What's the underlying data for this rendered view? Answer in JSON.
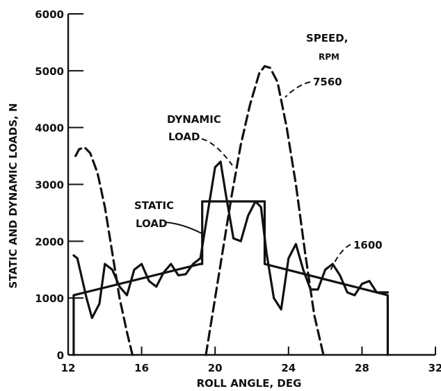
{
  "chart_data": {
    "type": "line",
    "xlabel": "ROLL ANGLE, DEG",
    "ylabel": "STATIC AND DYNAMIC LOADS, N",
    "xlim": [
      12,
      32
    ],
    "ylim": [
      0,
      6000
    ],
    "x_ticks": [
      12,
      16,
      20,
      24,
      28,
      32
    ],
    "y_ticks": [
      0,
      1000,
      2000,
      3000,
      4000,
      5000,
      6000
    ],
    "x_tick_labels": [
      "12",
      "16",
      "20",
      "24",
      "28",
      "32"
    ],
    "y_tick_labels": [
      "0",
      "1000",
      "2000",
      "3000",
      "4000",
      "5000",
      "6000"
    ],
    "grid": false,
    "legend_title_line1": "SPEED,",
    "legend_title_line2": "RPM",
    "annotations": {
      "dynamic_load_line1": "DYNAMIC",
      "dynamic_load_line2": "LOAD",
      "static_load_line1": "STATIC",
      "static_load_line2": "LOAD",
      "speed_high": "7560",
      "speed_low": "1600"
    },
    "series": [
      {
        "style": "solid",
        "role": "static-load",
        "x": [
          12.3,
          12.3,
          19.2,
          19.3,
          19.3,
          22.6,
          22.7,
          22.7,
          29.4,
          29.4
        ],
        "y": [
          0,
          1050,
          1600,
          1600,
          2700,
          2700,
          2700,
          1600,
          1050,
          0
        ]
      },
      {
        "style": "solid",
        "role": "dynamic-load-1600-rpm",
        "x": [
          12.3,
          12.5,
          13.0,
          13.3,
          13.7,
          14.0,
          14.4,
          14.8,
          15.2,
          15.6,
          16.0,
          16.4,
          16.8,
          17.2,
          17.6,
          18.0,
          18.4,
          18.8,
          19.2,
          19.6,
          20.0,
          20.3,
          20.6,
          21.0,
          21.4,
          21.8,
          22.2,
          22.5,
          22.8,
          23.2,
          23.6,
          24.0,
          24.4,
          24.8,
          25.2,
          25.6,
          26.0,
          26.4,
          26.8,
          27.2,
          27.6,
          28.0,
          28.4,
          28.8,
          29.2,
          29.4
        ],
        "y": [
          1750,
          1700,
          1000,
          650,
          900,
          1600,
          1500,
          1200,
          1050,
          1500,
          1600,
          1300,
          1200,
          1450,
          1600,
          1400,
          1420,
          1600,
          1700,
          2500,
          3300,
          3400,
          2800,
          2050,
          2000,
          2450,
          2700,
          2600,
          1800,
          1000,
          800,
          1700,
          1950,
          1500,
          1150,
          1150,
          1500,
          1600,
          1400,
          1100,
          1050,
          1250,
          1300,
          1100,
          1100,
          1100
        ]
      },
      {
        "style": "dashed",
        "role": "dynamic-load-7560-rpm",
        "segments": [
          {
            "x": [
              12.4,
              12.6,
              12.9,
              13.2,
              13.6,
              14.0,
              14.4,
              14.8,
              15.2,
              15.5
            ],
            "y": [
              3500,
              3620,
              3650,
              3550,
              3200,
              2600,
              1800,
              1000,
              400,
              0
            ]
          },
          {
            "x": [
              19.5,
              19.9,
              20.4,
              20.9,
              21.4,
              21.9,
              22.4,
              22.7,
              23.0,
              23.4,
              23.9,
              24.4,
              24.9,
              25.4,
              25.9
            ],
            "y": [
              0,
              800,
              1800,
              2800,
              3700,
              4400,
              4950,
              5080,
              5050,
              4800,
              4000,
              3000,
              1800,
              700,
              0
            ]
          }
        ]
      }
    ]
  }
}
